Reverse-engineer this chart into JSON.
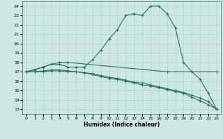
{
  "xlabel": "Humidex (Indice chaleur)",
  "background_color": "#cce8e0",
  "grid_color": "#aad4cc",
  "line_color": "#2a6e64",
  "xlim": [
    -0.5,
    23.5
  ],
  "ylim": [
    12.5,
    24.5
  ],
  "xticks": [
    0,
    1,
    2,
    3,
    4,
    5,
    6,
    7,
    8,
    9,
    10,
    11,
    12,
    13,
    14,
    15,
    16,
    17,
    18,
    19,
    20,
    21,
    22,
    23
  ],
  "yticks": [
    13,
    14,
    15,
    16,
    17,
    18,
    19,
    20,
    21,
    22,
    23,
    24
  ],
  "line1_x": [
    0,
    1,
    2,
    3,
    4,
    5,
    6,
    7,
    8,
    9,
    10,
    11,
    12,
    13,
    14,
    15,
    16,
    17,
    18,
    19,
    20,
    21,
    22,
    23
  ],
  "line1_y": [
    17.0,
    17.2,
    17.5,
    17.8,
    17.8,
    17.5,
    17.5,
    17.5,
    18.3,
    19.3,
    20.5,
    21.5,
    23.0,
    23.2,
    23.0,
    24.0,
    24.0,
    23.2,
    21.7,
    18.0,
    17.0,
    16.2,
    14.7,
    13.0
  ],
  "line2_x": [
    0,
    2,
    3,
    4,
    5,
    17,
    23
  ],
  "line2_y": [
    17.0,
    17.5,
    17.8,
    18.0,
    18.0,
    17.0,
    17.0
  ],
  "line3_x": [
    0,
    1,
    2,
    3,
    4,
    5,
    6,
    7,
    8,
    9,
    10,
    11,
    12,
    13,
    14,
    15,
    16,
    17,
    18,
    19,
    20,
    21,
    22,
    23
  ],
  "line3_y": [
    17.0,
    17.0,
    17.1,
    17.2,
    17.2,
    17.1,
    17.0,
    16.9,
    16.7,
    16.5,
    16.3,
    16.2,
    16.0,
    15.8,
    15.6,
    15.5,
    15.3,
    15.1,
    14.9,
    14.7,
    14.3,
    13.9,
    13.5,
    13.0
  ],
  "line4_x": [
    0,
    1,
    2,
    3,
    4,
    5,
    6,
    7,
    8,
    9,
    10,
    11,
    12,
    13,
    14,
    15,
    16,
    17,
    18,
    19,
    20,
    21,
    22,
    23
  ],
  "line4_y": [
    17.0,
    17.0,
    17.0,
    17.1,
    17.1,
    17.0,
    17.0,
    16.9,
    16.8,
    16.6,
    16.4,
    16.3,
    16.1,
    15.9,
    15.8,
    15.6,
    15.4,
    15.2,
    15.0,
    14.8,
    14.5,
    14.2,
    13.8,
    13.0
  ]
}
